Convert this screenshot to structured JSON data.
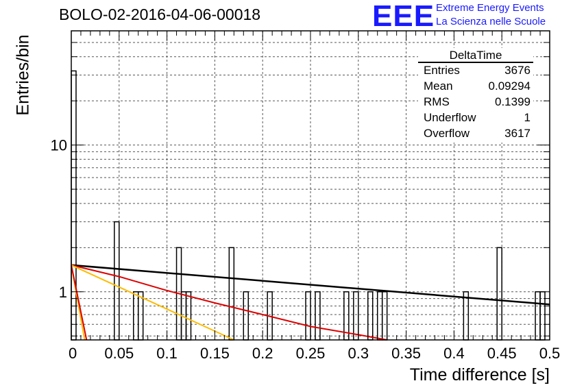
{
  "header": {
    "title": "BOLO-02-2016-04-06-00018"
  },
  "logo": {
    "mark": "EEE",
    "line1": "Extreme Energy Events",
    "line2": "La Scienza nelle Scuole"
  },
  "stats_box": {
    "title": "DeltaTime",
    "rows": [
      {
        "label": "Entries",
        "value": "3676"
      },
      {
        "label": "Mean",
        "value": "0.09294"
      },
      {
        "label": "RMS",
        "value": "0.1399"
      },
      {
        "label": "Underflow",
        "value": "1"
      },
      {
        "label": "Overflow",
        "value": "3617"
      }
    ]
  },
  "chart_data": {
    "type": "bar",
    "title": "BOLO-02-2016-04-06-00018",
    "xlabel": "Time difference [s]",
    "ylabel": "Entries/bin",
    "xlim": [
      0,
      0.5
    ],
    "ylim": [
      0.47,
      60
    ],
    "y_scale": "log",
    "grid": true,
    "x_ticks": [
      "0",
      "0.05",
      "0.1",
      "0.15",
      "0.2",
      "0.25",
      "0.3",
      "0.35",
      "0.4",
      "0.45",
      "0.5"
    ],
    "y_ticks": [
      "1",
      "10"
    ],
    "bin_width": 0.005,
    "bins": [
      {
        "x": 0.0,
        "value": 32
      },
      {
        "x": 0.045,
        "value": 3
      },
      {
        "x": 0.065,
        "value": 1
      },
      {
        "x": 0.07,
        "value": 1
      },
      {
        "x": 0.11,
        "value": 2
      },
      {
        "x": 0.115,
        "value": 1
      },
      {
        "x": 0.12,
        "value": 1
      },
      {
        "x": 0.165,
        "value": 2
      },
      {
        "x": 0.18,
        "value": 1
      },
      {
        "x": 0.205,
        "value": 1
      },
      {
        "x": 0.245,
        "value": 1
      },
      {
        "x": 0.255,
        "value": 1
      },
      {
        "x": 0.285,
        "value": 1
      },
      {
        "x": 0.295,
        "value": 1
      },
      {
        "x": 0.31,
        "value": 1
      },
      {
        "x": 0.32,
        "value": 1
      },
      {
        "x": 0.325,
        "value": 1
      },
      {
        "x": 0.41,
        "value": 1
      },
      {
        "x": 0.445,
        "value": 2
      },
      {
        "x": 0.485,
        "value": 1
      },
      {
        "x": 0.49,
        "value": 1
      }
    ],
    "series": [
      {
        "color": "#000000",
        "points": [
          [
            0,
            1.52
          ],
          [
            0.5,
            0.82
          ]
        ]
      },
      {
        "color": "#dd0000",
        "points": [
          [
            0,
            1.52
          ],
          [
            0.05,
            1.27
          ],
          [
            0.1,
            1.02
          ],
          [
            0.15,
            0.84
          ],
          [
            0.2,
            0.7
          ],
          [
            0.25,
            0.58
          ],
          [
            0.3,
            0.51
          ],
          [
            0.33,
            0.47
          ]
        ]
      },
      {
        "color": "#ffbb00",
        "points": [
          [
            0,
            1.52
          ],
          [
            0.17,
            0.47
          ]
        ]
      },
      {
        "color": "#ffbb00",
        "points": [
          [
            0,
            1.52
          ],
          [
            0.014,
            0.47
          ]
        ]
      },
      {
        "color": "#dd0000",
        "points": [
          [
            0,
            1.52
          ],
          [
            0.016,
            0.47
          ]
        ]
      }
    ]
  }
}
